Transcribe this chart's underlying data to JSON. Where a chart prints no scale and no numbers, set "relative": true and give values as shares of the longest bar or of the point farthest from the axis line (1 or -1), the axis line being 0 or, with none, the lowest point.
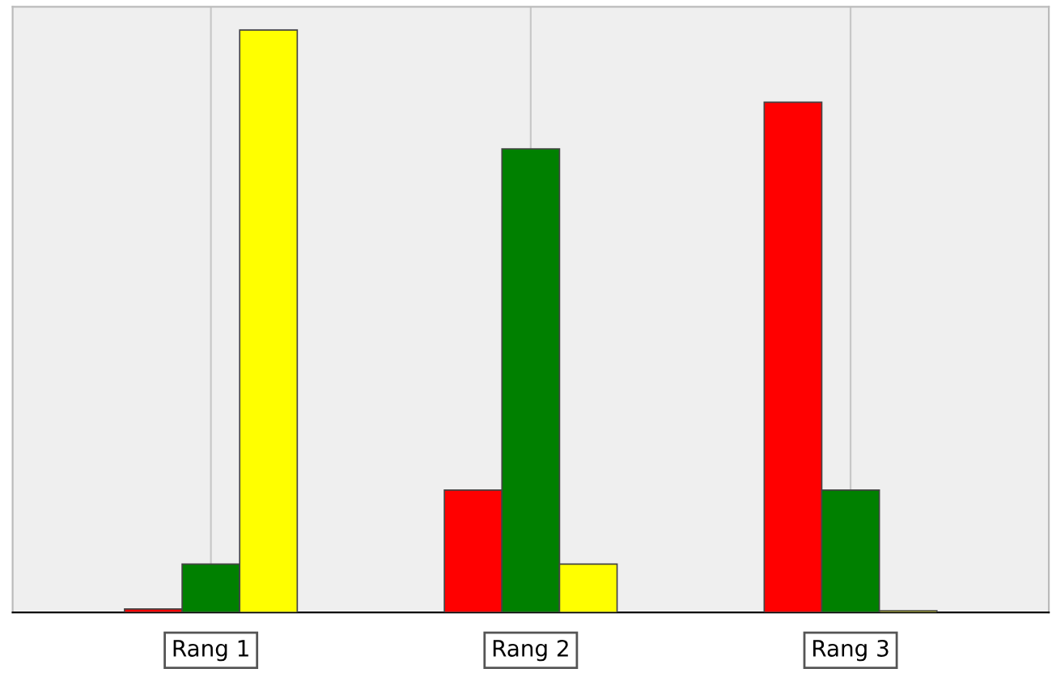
{
  "chart_data": {
    "type": "bar",
    "relative": true,
    "categories": [
      "Rang 1",
      "Rang 2",
      "Rang 3"
    ],
    "series": [
      {
        "color": "#ff0000",
        "values": [
          0.006,
          0.21,
          0.876
        ]
      },
      {
        "color": "#008000",
        "values": [
          0.083,
          0.796,
          0.21
        ]
      },
      {
        "color": "#ffff00",
        "values": [
          1,
          0.083,
          0.003
        ]
      }
    ],
    "grid": "x",
    "legend": false
  }
}
